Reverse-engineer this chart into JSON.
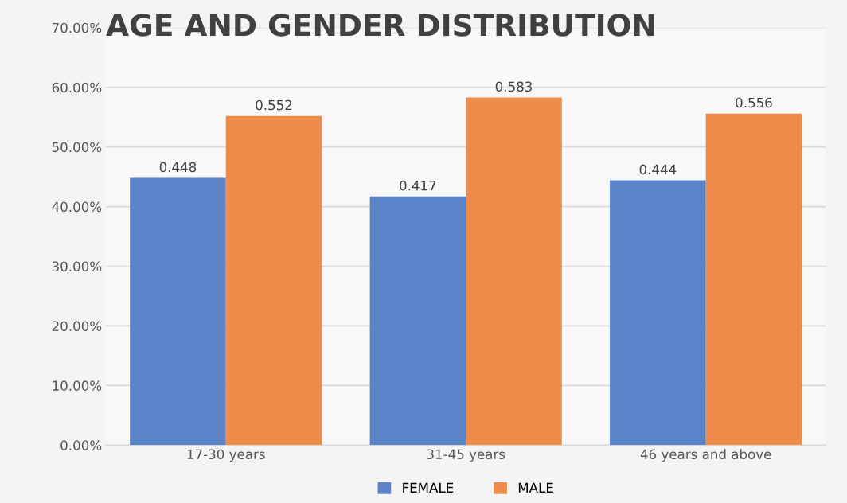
{
  "chart_data": {
    "type": "bar",
    "title": "AGE AND GENDER DISTRIBUTION",
    "categories": [
      "17-30 years",
      "31-45 years",
      "46 years and above"
    ],
    "series": [
      {
        "name": "FEMALE",
        "color": "#5b84c8",
        "values": [
          0.448,
          0.417,
          0.444
        ]
      },
      {
        "name": "MALE",
        "color": "#ed8c4b",
        "values": [
          0.552,
          0.583,
          0.556
        ]
      }
    ],
    "ylim": [
      0,
      0.7
    ],
    "yticks": [
      {
        "value": 0,
        "label": "0.00%"
      },
      {
        "value": 0.1,
        "label": "10.00%"
      },
      {
        "value": 0.2,
        "label": "20.00%"
      },
      {
        "value": 0.3,
        "label": "30.00%"
      },
      {
        "value": 0.4,
        "label": "40.00%"
      },
      {
        "value": 0.5,
        "label": "50.00%"
      },
      {
        "value": 0.6,
        "label": "60.00%"
      },
      {
        "value": 0.7,
        "label": "70.00%"
      }
    ],
    "grid": "y",
    "legend": "bottom",
    "data_labels": true
  }
}
